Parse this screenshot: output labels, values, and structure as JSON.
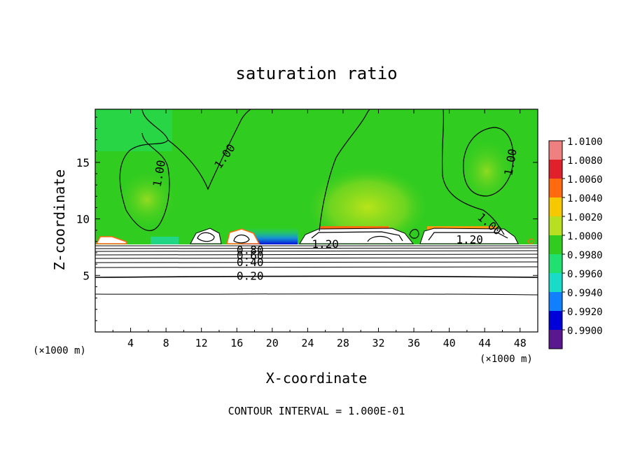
{
  "chart_data": {
    "type": "heatmap",
    "title": "saturation ratio",
    "xlabel": "X-coordinate",
    "ylabel": "Z-coordinate",
    "x_unit_label": "(×1000 m)",
    "x_unit_label_right": "(×1000 m)",
    "x_ticks": [
      "4",
      "8",
      "12",
      "16",
      "20",
      "24",
      "28",
      "32",
      "36",
      "40",
      "44",
      "48"
    ],
    "y_ticks": [
      "5",
      "10",
      "15"
    ],
    "xlim": [
      0,
      50
    ],
    "ylim": [
      0,
      19.7
    ],
    "footer": "CONTOUR INTERVAL = 1.000E-01",
    "colorbar": {
      "levels": [
        "1.0100",
        "1.0080",
        "1.0060",
        "1.0040",
        "1.0020",
        "1.0000",
        "0.9980",
        "0.9960",
        "0.9940",
        "0.9920",
        "0.9900"
      ],
      "colors": [
        "#f08080",
        "#e0202a",
        "#ff6a10",
        "#f5c800",
        "#b8e020",
        "#30cc20",
        "#20e070",
        "#18dcc8",
        "#1080ff",
        "#0000d8",
        "#5a1890"
      ]
    },
    "contour_labels": [
      {
        "text": "1.00",
        "x": 7.3,
        "y": 14.0,
        "angle": -80
      },
      {
        "text": "1.00",
        "x": 14.7,
        "y": 15.5,
        "angle": -55
      },
      {
        "text": "1.00",
        "x": 47.0,
        "y": 15.0,
        "angle": -80
      },
      {
        "text": "1.00",
        "x": 44.5,
        "y": 9.5,
        "angle": 40
      },
      {
        "text": "1.20",
        "x": 26.0,
        "y": 7.7,
        "angle": 0
      },
      {
        "text": "1.20",
        "x": 42.3,
        "y": 8.1,
        "angle": 0
      },
      {
        "text": "0.80",
        "x": 17.5,
        "y": 7.2,
        "angle": 0
      },
      {
        "text": "0.60",
        "x": 17.5,
        "y": 6.7,
        "angle": 0
      },
      {
        "text": "0.40",
        "x": 17.5,
        "y": 6.1,
        "angle": 0
      },
      {
        "text": "0.20",
        "x": 17.5,
        "y": 4.9,
        "angle": 0
      }
    ]
  }
}
